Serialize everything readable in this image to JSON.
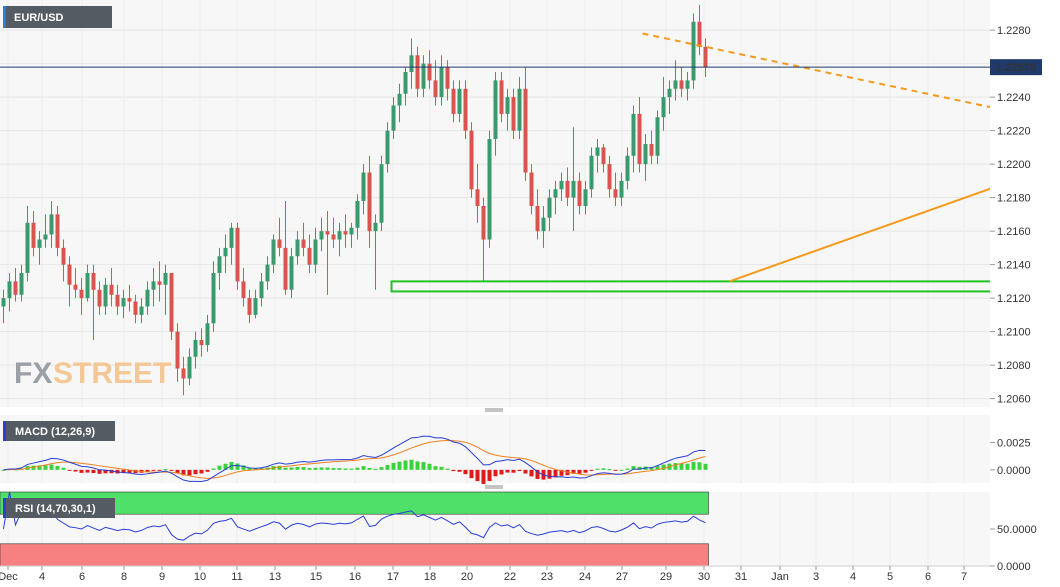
{
  "chart_data": {
    "type": "candlestick",
    "symbol": "EUR/USD",
    "price_ylim": [
      1.2055,
      1.2298
    ],
    "price_ticks": [
      "1.2280",
      "1.2260",
      "1.2240",
      "1.2220",
      "1.2200",
      "1.2180",
      "1.2160",
      "1.2140",
      "1.2120",
      "1.2100",
      "1.2080",
      "1.2060"
    ],
    "last_price": "1.22579",
    "x_labels": [
      "Dec",
      "4",
      "6",
      "8",
      "9",
      "10",
      "11",
      "13",
      "15",
      "16",
      "17",
      "18",
      "20",
      "22",
      "23",
      "24",
      "27",
      "29",
      "30",
      "31",
      "Jan",
      "3",
      "4",
      "5",
      "6",
      "7"
    ],
    "watermark": {
      "part1": "FX",
      "part2": "STREET"
    },
    "candles": [
      [
        1.2115,
        1.2125,
        1.2105,
        1.212
      ],
      [
        1.212,
        1.2135,
        1.2112,
        1.213
      ],
      [
        1.213,
        1.2138,
        1.2118,
        1.2122
      ],
      [
        1.2122,
        1.214,
        1.2118,
        1.2135
      ],
      [
        1.2135,
        1.2175,
        1.213,
        1.2165
      ],
      [
        1.2165,
        1.2172,
        1.2145,
        1.215
      ],
      [
        1.215,
        1.216,
        1.214,
        1.2155
      ],
      [
        1.2155,
        1.217,
        1.215,
        1.2158
      ],
      [
        1.2158,
        1.2178,
        1.215,
        1.217
      ],
      [
        1.217,
        1.2175,
        1.2145,
        1.215
      ],
      [
        1.215,
        1.2155,
        1.213,
        1.214
      ],
      [
        1.214,
        1.2145,
        1.2115,
        1.2128
      ],
      [
        1.2128,
        1.2138,
        1.212,
        1.2125
      ],
      [
        1.2125,
        1.2132,
        1.211,
        1.212
      ],
      [
        1.212,
        1.214,
        1.2118,
        1.2135
      ],
      [
        1.2135,
        1.214,
        1.2095,
        1.2125
      ],
      [
        1.2125,
        1.213,
        1.211,
        1.2115
      ],
      [
        1.2115,
        1.2132,
        1.211,
        1.2128
      ],
      [
        1.2128,
        1.2138,
        1.2115,
        1.2122
      ],
      [
        1.2122,
        1.2128,
        1.211,
        1.2115
      ],
      [
        1.2115,
        1.2125,
        1.2108,
        1.212
      ],
      [
        1.212,
        1.2128,
        1.2112,
        1.2118
      ],
      [
        1.2118,
        1.2122,
        1.2105,
        1.211
      ],
      [
        1.211,
        1.212,
        1.2105,
        1.2115
      ],
      [
        1.2115,
        1.213,
        1.211,
        1.2125
      ],
      [
        1.2125,
        1.2138,
        1.2115,
        1.213
      ],
      [
        1.213,
        1.2142,
        1.2118,
        1.2128
      ],
      [
        1.2128,
        1.214,
        1.211,
        1.2135
      ],
      [
        1.2135,
        1.2135,
        1.2095,
        1.21
      ],
      [
        1.21,
        1.2105,
        1.207,
        1.2078
      ],
      [
        1.2078,
        1.2085,
        1.2062,
        1.2072
      ],
      [
        1.2072,
        1.209,
        1.2068,
        1.2085
      ],
      [
        1.2085,
        1.21,
        1.2078,
        1.2095
      ],
      [
        1.2095,
        1.2102,
        1.2085,
        1.2092
      ],
      [
        1.2092,
        1.211,
        1.2088,
        1.2105
      ],
      [
        1.2105,
        1.2142,
        1.21,
        1.2135
      ],
      [
        1.2135,
        1.215,
        1.2125,
        1.2145
      ],
      [
        1.2145,
        1.2158,
        1.2135,
        1.215
      ],
      [
        1.215,
        1.2165,
        1.214,
        1.2162
      ],
      [
        1.2162,
        1.2165,
        1.2125,
        1.213
      ],
      [
        1.213,
        1.2138,
        1.2115,
        1.212
      ],
      [
        1.212,
        1.2125,
        1.2105,
        1.211
      ],
      [
        1.211,
        1.2125,
        1.2108,
        1.212
      ],
      [
        1.212,
        1.2135,
        1.2115,
        1.213
      ],
      [
        1.213,
        1.2145,
        1.2125,
        1.214
      ],
      [
        1.214,
        1.2158,
        1.2135,
        1.2155
      ],
      [
        1.2155,
        1.2168,
        1.2145,
        1.215
      ],
      [
        1.215,
        1.2178,
        1.2122,
        1.2125
      ],
      [
        1.2125,
        1.215,
        1.212,
        1.2145
      ],
      [
        1.2145,
        1.216,
        1.214,
        1.2155
      ],
      [
        1.2155,
        1.2165,
        1.2145,
        1.215
      ],
      [
        1.215,
        1.2158,
        1.2135,
        1.214
      ],
      [
        1.214,
        1.2162,
        1.2135,
        1.2155
      ],
      [
        1.2155,
        1.2168,
        1.2148,
        1.216
      ],
      [
        1.216,
        1.2172,
        1.2122,
        1.2158
      ],
      [
        1.2158,
        1.2168,
        1.215,
        1.2155
      ],
      [
        1.2155,
        1.2165,
        1.2145,
        1.216
      ],
      [
        1.216,
        1.217,
        1.215,
        1.2158
      ],
      [
        1.2158,
        1.2165,
        1.215,
        1.2162
      ],
      [
        1.2162,
        1.2182,
        1.2155,
        1.2178
      ],
      [
        1.2178,
        1.22,
        1.217,
        1.2195
      ],
      [
        1.2195,
        1.2205,
        1.215,
        1.216
      ],
      [
        1.216,
        1.217,
        1.2125,
        1.2165
      ],
      [
        1.2165,
        1.2205,
        1.216,
        1.22
      ],
      [
        1.22,
        1.2225,
        1.2195,
        1.222
      ],
      [
        1.222,
        1.224,
        1.2215,
        1.2235
      ],
      [
        1.2235,
        1.2248,
        1.2225,
        1.2242
      ],
      [
        1.2242,
        1.2258,
        1.2235,
        1.2255
      ],
      [
        1.2255,
        1.2275,
        1.2245,
        1.2265
      ],
      [
        1.2265,
        1.227,
        1.224,
        1.2245
      ],
      [
        1.2245,
        1.2265,
        1.224,
        1.226
      ],
      [
        1.226,
        1.2268,
        1.2245,
        1.225
      ],
      [
        1.225,
        1.2262,
        1.2235,
        1.224
      ],
      [
        1.224,
        1.2265,
        1.2235,
        1.2258
      ],
      [
        1.2258,
        1.2262,
        1.2238,
        1.2245
      ],
      [
        1.2245,
        1.225,
        1.2225,
        1.223
      ],
      [
        1.223,
        1.225,
        1.2225,
        1.2245
      ],
      [
        1.2245,
        1.225,
        1.2215,
        1.222
      ],
      [
        1.222,
        1.2225,
        1.218,
        1.2185
      ],
      [
        1.2185,
        1.22,
        1.2165,
        1.2175
      ],
      [
        1.2175,
        1.218,
        1.213,
        1.2155
      ],
      [
        1.2155,
        1.222,
        1.215,
        1.2215
      ],
      [
        1.2215,
        1.2255,
        1.2205,
        1.225
      ],
      [
        1.225,
        1.2255,
        1.2225,
        1.223
      ],
      [
        1.223,
        1.2245,
        1.222,
        1.224
      ],
      [
        1.224,
        1.2245,
        1.2215,
        1.222
      ],
      [
        1.222,
        1.2252,
        1.2215,
        1.2245
      ],
      [
        1.2245,
        1.2258,
        1.219,
        1.2195
      ],
      [
        1.2195,
        1.22,
        1.217,
        1.2175
      ],
      [
        1.2175,
        1.2185,
        1.2155,
        1.216
      ],
      [
        1.216,
        1.2175,
        1.215,
        1.2168
      ],
      [
        1.2168,
        1.2185,
        1.216,
        1.218
      ],
      [
        1.218,
        1.219,
        1.217,
        1.2185
      ],
      [
        1.2185,
        1.2195,
        1.2178,
        1.219
      ],
      [
        1.219,
        1.2198,
        1.2175,
        1.218
      ],
      [
        1.218,
        1.2222,
        1.216,
        1.219
      ],
      [
        1.219,
        1.2195,
        1.217,
        1.2175
      ],
      [
        1.2175,
        1.219,
        1.217,
        1.2185
      ],
      [
        1.2185,
        1.221,
        1.218,
        1.2205
      ],
      [
        1.2205,
        1.2215,
        1.2195,
        1.221
      ],
      [
        1.221,
        1.2212,
        1.2195,
        1.22
      ],
      [
        1.22,
        1.2205,
        1.218,
        1.2185
      ],
      [
        1.2185,
        1.2195,
        1.2175,
        1.218
      ],
      [
        1.218,
        1.2195,
        1.2175,
        1.219
      ],
      [
        1.219,
        1.221,
        1.2185,
        1.2205
      ],
      [
        1.2205,
        1.2235,
        1.2195,
        1.223
      ],
      [
        1.223,
        1.224,
        1.2195,
        1.22
      ],
      [
        1.22,
        1.2218,
        1.219,
        1.2212
      ],
      [
        1.2212,
        1.222,
        1.22,
        1.2205
      ],
      [
        1.2205,
        1.2232,
        1.22,
        1.2228
      ],
      [
        1.2228,
        1.2252,
        1.222,
        1.224
      ],
      [
        1.224,
        1.225,
        1.223,
        1.2245
      ],
      [
        1.2245,
        1.2262,
        1.2238,
        1.225
      ],
      [
        1.225,
        1.2258,
        1.224,
        1.2245
      ],
      [
        1.2245,
        1.2255,
        1.2238,
        1.225
      ],
      [
        1.225,
        1.229,
        1.2245,
        1.2285
      ],
      [
        1.2285,
        1.2295,
        1.2265,
        1.227
      ],
      [
        1.227,
        1.2275,
        1.2252,
        1.2258
      ]
    ],
    "trendlines": [
      {
        "style": "dashed",
        "color": "#f59a1c",
        "points": [
          [
            106.5,
            1.2278
          ],
          [
            183,
            1.222
          ]
        ]
      },
      {
        "style": "solid",
        "color": "#f59a1c",
        "points": [
          [
            121,
            1.213
          ],
          [
            253,
            1.2298
          ]
        ]
      }
    ],
    "support_zone": {
      "color": "#22c422",
      "x_range": [
        65,
        190
      ],
      "y_range": [
        1.2124,
        1.213
      ]
    },
    "macd": {
      "label": "MACD (12,26,9)",
      "ylim": [
        -0.0012,
        0.005
      ],
      "ticks": [
        "0.0025",
        "0.0000"
      ],
      "line_color": "#2a3fd6",
      "signal_color": "#f0821e"
    },
    "rsi": {
      "label": "RSI (14,70,30,1)",
      "ylim": [
        0,
        100
      ],
      "ticks": [
        "50.0000",
        "0.0000"
      ],
      "line_color": "#2a3fd6",
      "overbought_color": "#4fe06a",
      "oversold_color": "#f78080"
    }
  }
}
